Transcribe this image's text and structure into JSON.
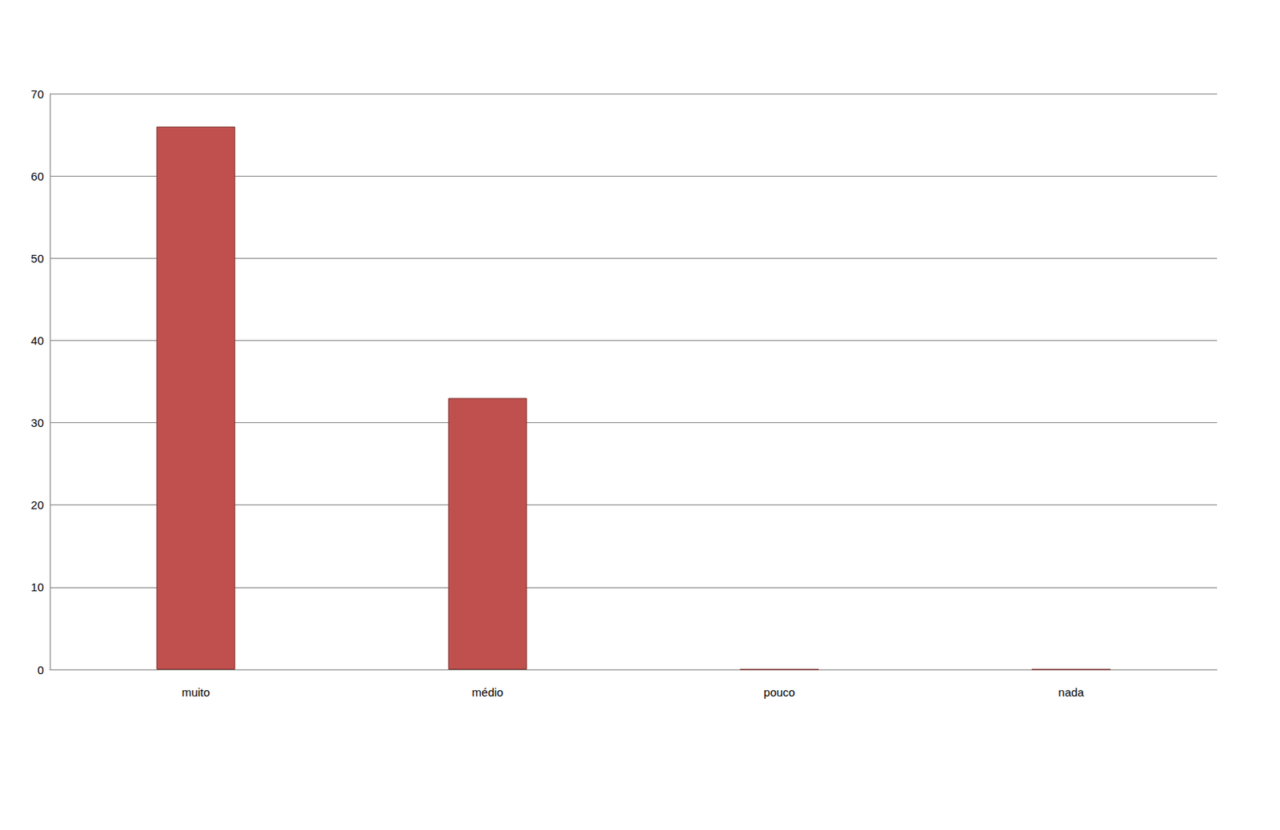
{
  "chart_data": {
    "type": "bar",
    "categories": [
      "muito",
      "médio",
      "pouco",
      "nada"
    ],
    "values": [
      66,
      33,
      0,
      0
    ],
    "color": "#c0504d",
    "ylim": [
      0,
      70
    ],
    "yticks": [
      0,
      10,
      20,
      30,
      40,
      50,
      60,
      70
    ],
    "grid": true
  }
}
